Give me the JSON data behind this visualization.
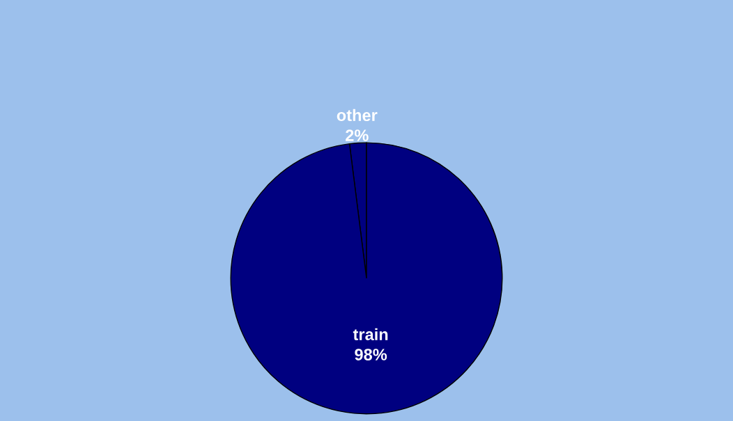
{
  "chart_data": {
    "type": "pie",
    "categories": [
      "other",
      "train"
    ],
    "values": [
      2,
      98
    ],
    "colors": [
      "#000080",
      "#000080"
    ],
    "value_labels": [
      "2%",
      "98%"
    ]
  }
}
